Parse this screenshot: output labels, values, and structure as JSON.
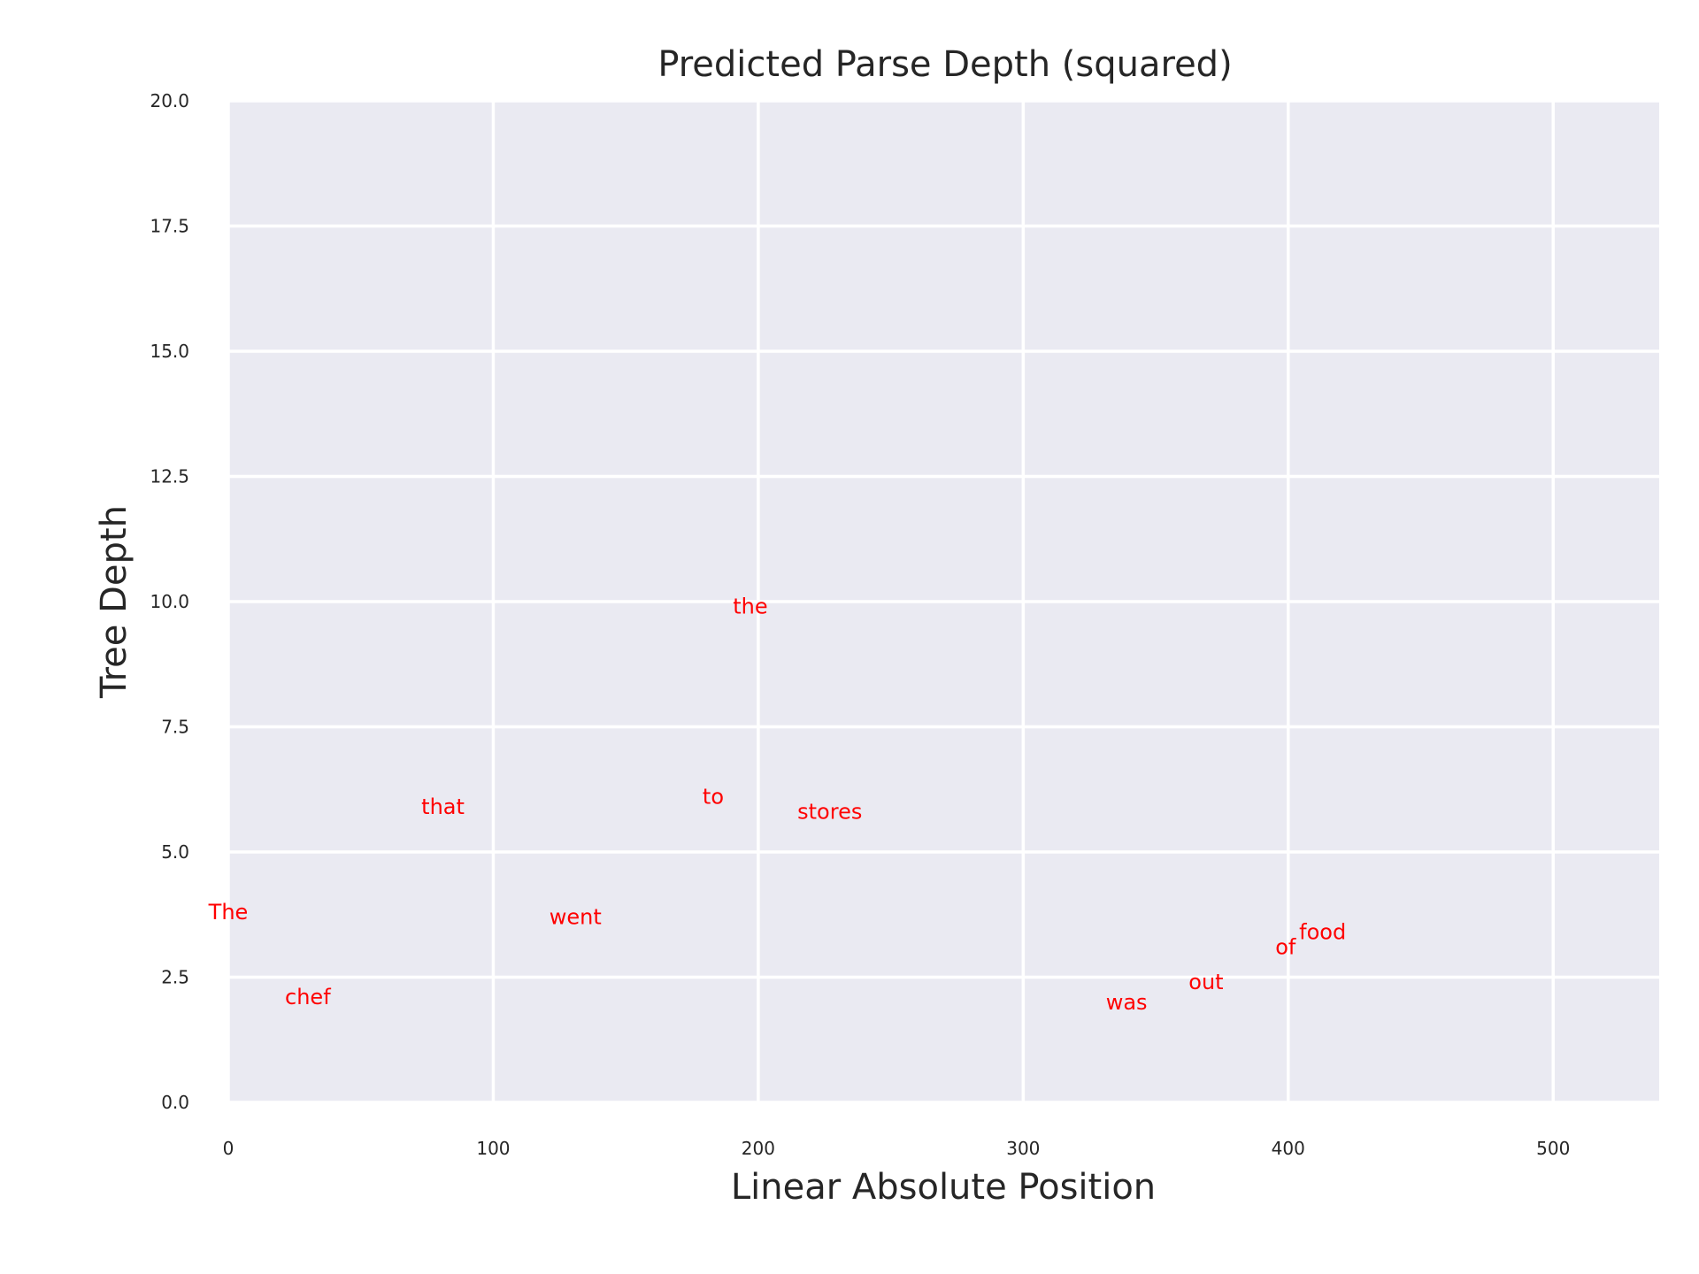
{
  "chart_data": {
    "type": "scatter",
    "title": "Predicted Parse Depth (squared)",
    "xlabel": "Linear Absolute Position",
    "ylabel": "Tree Depth",
    "xlim": [
      0,
      540
    ],
    "ylim": [
      0,
      20
    ],
    "grid": true,
    "x_ticks": [
      0,
      100,
      200,
      300,
      400,
      500
    ],
    "x_tick_labels": [
      "0",
      "100",
      "200",
      "300",
      "400",
      "500"
    ],
    "y_ticks": [
      0,
      2.5,
      5,
      7.5,
      10,
      12.5,
      15,
      17.5,
      20
    ],
    "y_tick_labels": [
      "0.0",
      "2.5",
      "5.0",
      "7.5",
      "10.0",
      "12.5",
      "15.0",
      "17.5",
      "20.0"
    ],
    "colors": {
      "plot_background": "#eaeaf2",
      "grid": "#ffffff",
      "word": "#ff0000"
    },
    "points": [
      {
        "label": "The",
        "x": 0,
        "y": 3.8
      },
      {
        "label": "chef",
        "x": 30,
        "y": 2.1
      },
      {
        "label": "that",
        "x": 81,
        "y": 5.9
      },
      {
        "label": "went",
        "x": 131,
        "y": 3.7
      },
      {
        "label": "to",
        "x": 183,
        "y": 6.1
      },
      {
        "label": "the",
        "x": 197,
        "y": 9.9
      },
      {
        "label": "stores",
        "x": 227,
        "y": 5.8
      },
      {
        "label": "was",
        "x": 339,
        "y": 2.0
      },
      {
        "label": "out",
        "x": 369,
        "y": 2.4
      },
      {
        "label": "of",
        "x": 399,
        "y": 3.1
      },
      {
        "label": "food",
        "x": 413,
        "y": 3.4
      }
    ]
  }
}
